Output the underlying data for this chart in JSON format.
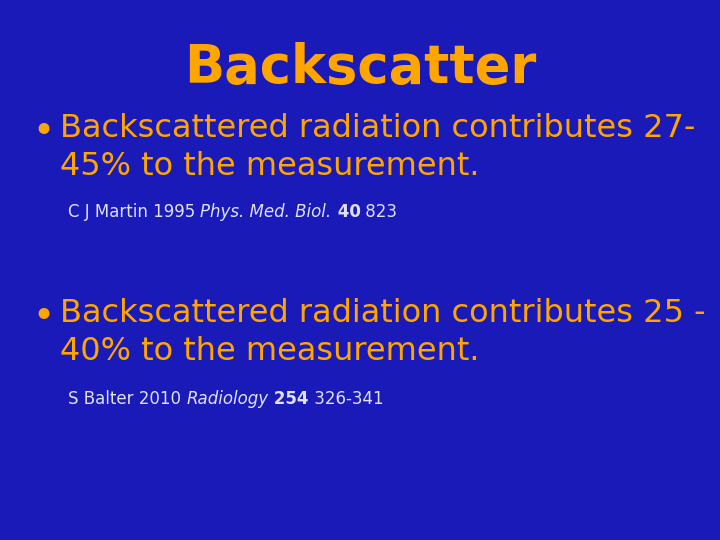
{
  "title": "Backscatter",
  "title_color": "#FFA500",
  "title_fontsize": 38,
  "background_color": "#1a1ab8",
  "bullet_color": "#FFA500",
  "ref_color": "#e0e0ff",
  "bullet1_line1": "Backscattered radiation contributes 27-",
  "bullet1_line2": "45% to the measurement.",
  "bullet1_fontsize": 23,
  "ref1_normal1": "C J Martin 1995 ",
  "ref1_italic": "Phys. Med. Biol.",
  "ref1_bold": " 40",
  "ref1_normal2": " 823",
  "ref1_fontsize": 12,
  "bullet2_line1": "Backscattered radiation contributes 25 -",
  "bullet2_line2": "40% to the measurement.",
  "bullet2_fontsize": 23,
  "ref2_normal1": "S Balter 2010 ",
  "ref2_italic": "Radiology",
  "ref2_bold": " 254",
  "ref2_normal2": " 326-341",
  "ref2_fontsize": 12,
  "figwidth": 7.2,
  "figheight": 5.4,
  "dpi": 100
}
